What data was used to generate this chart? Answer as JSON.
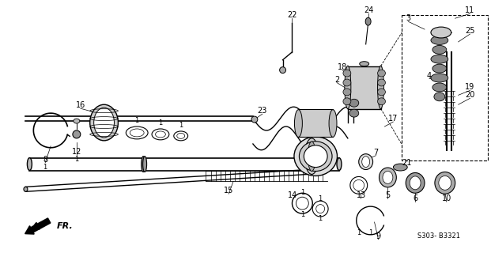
{
  "bg_color": "#ffffff",
  "lc": "#000000",
  "gray1": "#888888",
  "gray2": "#aaaaaa",
  "gray3": "#cccccc",
  "gray4": "#e0e0e0",
  "catalog": "S303- B3321",
  "figw": 6.21,
  "figh": 3.2,
  "dpi": 100
}
